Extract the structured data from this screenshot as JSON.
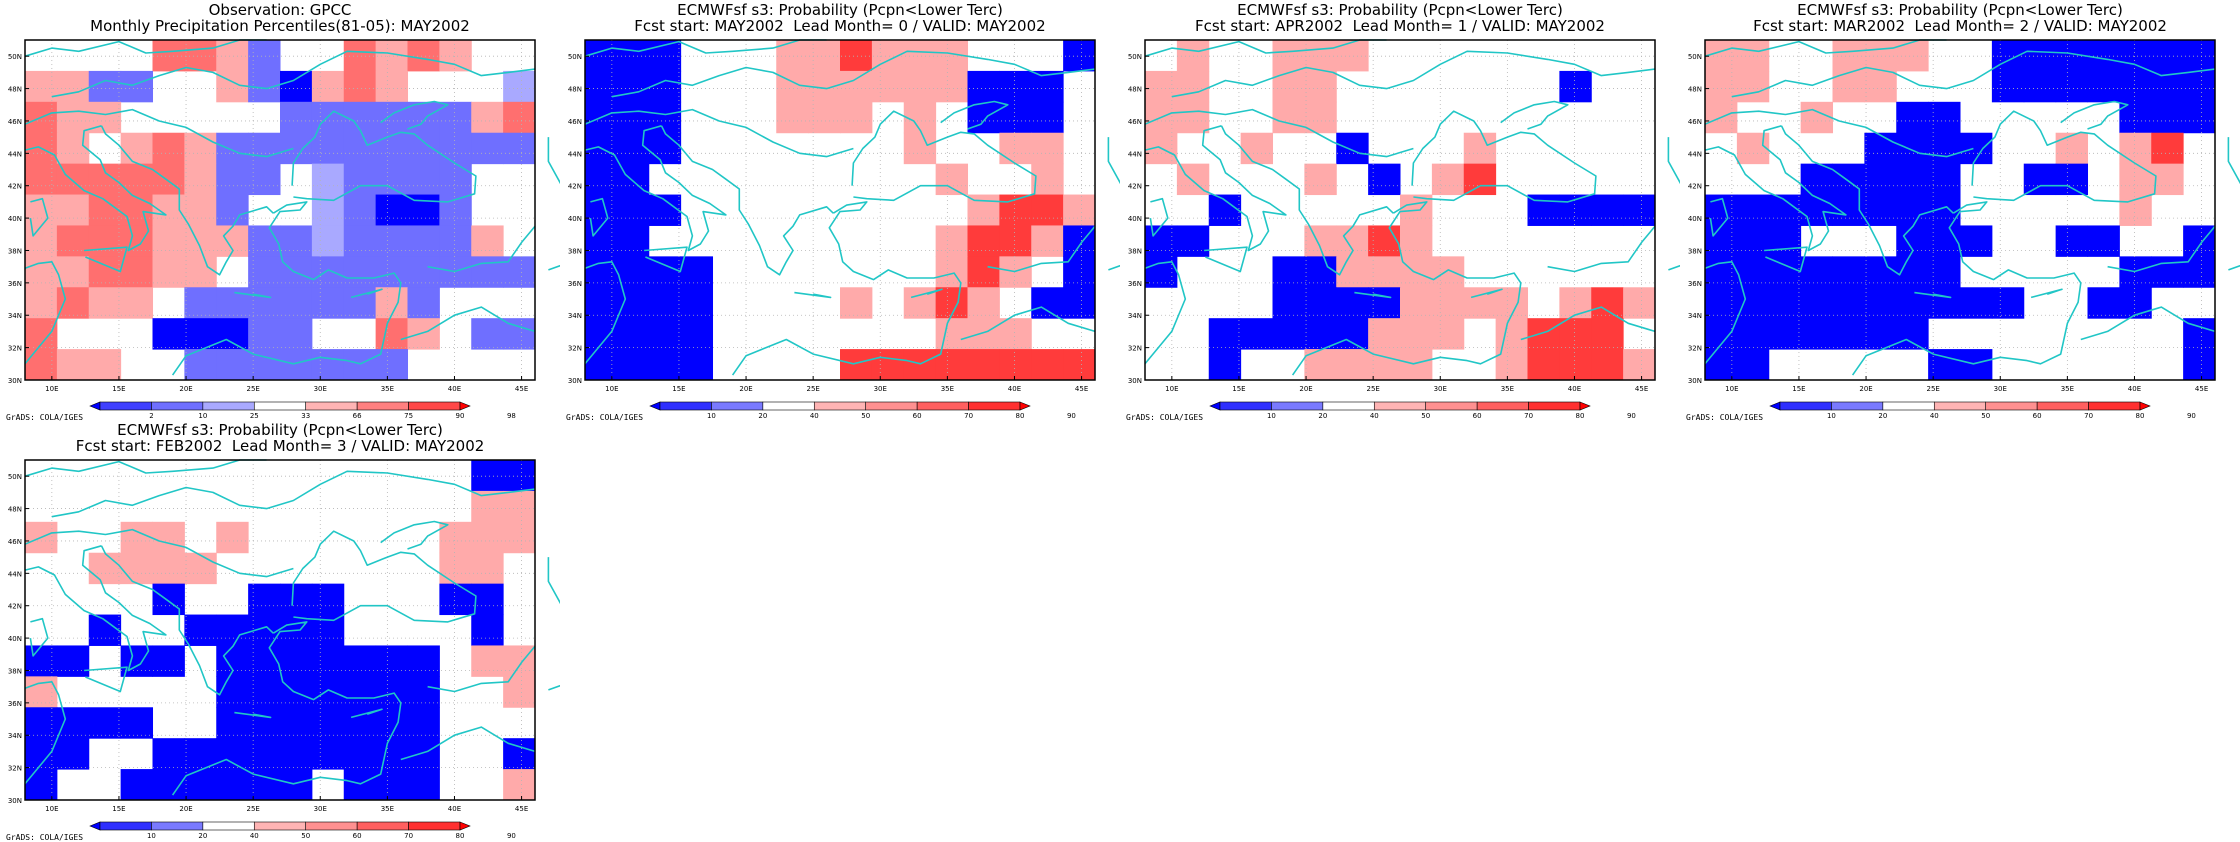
{
  "panels": [
    {
      "title_line1": "Observation: GPCC",
      "title_line2": "Monthly Precipitation Percentiles(81-05): MAY2002",
      "colorbar": "obs",
      "credit": "GrADS: COLA/IGES",
      "grid": [
        "00..RRrb..RrRr..",
        "rrbb..rbkrRr...g",
        "Rrr.....bbbbbbrR",
        "Rr.rRrbbbbbbbbbb",
        "RRRRRrbb.gbbbb..",
        "rrRRrrb..gbkkb..",
        "rRRRrrrbbgbbbbr.",
        "rrRRrr.bbbbbbbbb",
        "rRrr.bbbbbbrb...",
        "R...kkkbb..Rr.bb",
        "Rrr..bbbbbbb...."
      ],
      "legend": [
        "2",
        "10",
        "25",
        "33",
        "66",
        "75",
        "90",
        "98"
      ],
      "xticks": [
        "10E",
        "15E",
        "20E",
        "25E",
        "30E",
        "35E",
        "40E",
        "45E"
      ],
      "yticks": [
        "30N",
        "32N",
        "34N",
        "36N",
        "38N",
        "40N",
        "42N",
        "44N",
        "46N",
        "48N",
        "50N"
      ]
    },
    {
      "title_line1": "ECMWFsf s3: Probability (Pcpn<Lower Terc)",
      "title_line2": "Fcst start: MAY2002  Lead Month= 0 / VALID: MAY2002",
      "colorbar": "prob",
      "credit": "GrADS: COLA/IGES",
      "grid": [
        "BBB...rrRrrr...B",
        "BBB...rrrrrrBBB.",
        "BBB...rrr.r.BBB.",
        "BBB.......r..rr.",
        "BB.........r..r.",
        "BBB.........rRRr",
        "BB.........rRRrB",
        "BBBB.......rRr.B",
        "BBBB....r.rRr.BB",
        "BBBB.......rrr..",
        "BBBB....RRRRRRRR"
      ],
      "legend": [
        "10",
        "20",
        "40",
        "50",
        "60",
        "70",
        "80",
        "90"
      ],
      "xticks": [
        "10E",
        "15E",
        "20E",
        "25E",
        "30E",
        "35E",
        "40E",
        "45E"
      ],
      "yticks": [
        "30N",
        "32N",
        "34N",
        "36N",
        "38N",
        "40N",
        "42N",
        "44N",
        "46N",
        "48N",
        "50N"
      ]
    },
    {
      "title_line1": "ECMWFsf s3: Probability (Pcpn<Lower Terc)",
      "title_line2": "Fcst start: APR2002  Lead Month= 1 / VALID: MAY2002",
      "colorbar": "prob",
      "credit": "GrADS: COLA/IGES",
      "grid": [
        ".r..rrr.........",
        "rr..rr.......B..",
        "rr..rr..........",
        "r..r..B...r.....",
        ".r...r.B.rR.....",
        "..B.....r...BBBB",
        "BB...rrRr.......",
        "B...BBrrrr......",
        "....BBBBrrrr.rRr",
        "..BBBBBrrr.rRRR.",
        "..B..rrrr..rRRRr"
      ],
      "legend": [
        "10",
        "20",
        "40",
        "50",
        "60",
        "70",
        "80",
        "90"
      ],
      "xticks": [
        "10E",
        "15E",
        "20E",
        "25E",
        "30E",
        "35E",
        "40E",
        "45E"
      ],
      "yticks": [
        "30N",
        "32N",
        "34N",
        "36N",
        "38N",
        "40N",
        "42N",
        "44N",
        "46N",
        "48N",
        "50N"
      ]
    },
    {
      "title_line1": "ECMWFsf s3: Probability (Pcpn<Lower Terc)",
      "title_line2": "Fcst start: MAR2002  Lead Month= 2 / VALID: MAY2002",
      "colorbar": "prob",
      "credit": "GrADS: COLA/IGES",
      "grid": [
        "rr..rrr..BBBBBBB",
        "rr..rr...BBBBBBB",
        "r..r..BB.....BBB",
        ".r...BBBB..r.rR.",
        "...BBBBB..BB.rr.",
        "BBBBBBBB.....r..",
        "BBB...BBB..BB..B",
        "BBBBBBBB.....BBB",
        "BBBBBBBBBB..BB..",
        "BBBBBBB........B",
        "BB.....BB......B"
      ],
      "legend": [
        "10",
        "20",
        "40",
        "50",
        "60",
        "70",
        "80",
        "90"
      ],
      "xticks": [
        "10E",
        "15E",
        "20E",
        "25E",
        "30E",
        "35E",
        "40E",
        "45E"
      ],
      "yticks": [
        "30N",
        "32N",
        "34N",
        "36N",
        "38N",
        "40N",
        "42N",
        "44N",
        "46N",
        "48N",
        "50N"
      ]
    },
    {
      "title_line1": "ECMWFsf s3: Probability (Pcpn<Lower Terc)",
      "title_line2": "Fcst start: FEB2002  Lead Month= 3 / VALID: MAY2002",
      "colorbar": "prob",
      "credit": "GrADS: COLA/IGES",
      "grid": [
        "..............BB",
        "..............rr",
        "r..rr.r......rrr",
        "..rrrr.......rr.",
        "....B..BBB...BB.",
        "..B..BBBBB....B.",
        "BB.BB.BBBBBBB.rr",
        "r.....BBBBBBB..r",
        "BBBB..BBBBBBB...",
        "BB..BBBBBBBBB..B",
        "B..BBBBBB.BBB..r"
      ],
      "legend": [
        "10",
        "20",
        "40",
        "50",
        "60",
        "70",
        "80",
        "90"
      ],
      "xticks": [
        "10E",
        "15E",
        "20E",
        "25E",
        "30E",
        "35E",
        "40E",
        "45E"
      ],
      "yticks": [
        "30N",
        "32N",
        "34N",
        "36N",
        "38N",
        "40N",
        "42N",
        "44N",
        "46N",
        "48N",
        "50N"
      ]
    }
  ],
  "colors": {
    "strong_red": "#ff3b3b",
    "red": "#ff6f6f",
    "light_red": "#ffaaaa",
    "blue": "#0000ff",
    "mid_blue": "#6f6fff",
    "light_blue": "#a9a9ff",
    "coast": "#21c6c6",
    "grid": "#b4b4b4"
  },
  "colorbars": {
    "obs": [
      "#0000ff",
      "#4040ff",
      "#6f6fff",
      "#a9a9ff",
      "#ffffff",
      "#ffb4b4",
      "#ff8080",
      "#ff4848",
      "#ff0000"
    ],
    "prob": [
      "#0000ff",
      "#3030ff",
      "#7a7aff",
      "#ffffff",
      "#ffb4b4",
      "#ff9090",
      "#ff6060",
      "#ff3030",
      "#ff0000"
    ]
  }
}
